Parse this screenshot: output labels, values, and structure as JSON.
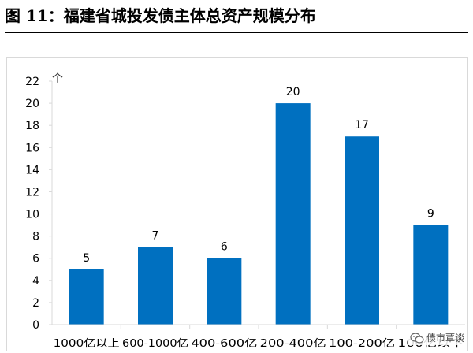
{
  "figure_title": "图 11：福建省城投发债主体总资产规模分布",
  "watermark": {
    "text": "债市覃谈",
    "icon": "wechat-icon"
  },
  "colors": {
    "bar": "#0070c0",
    "axis": "#d9d9d9",
    "text": "#000000"
  },
  "chart_data": {
    "type": "bar",
    "title": "",
    "xlabel": "",
    "ylabel": "个",
    "categories": [
      "1000亿以上",
      "600-1000亿",
      "400-600亿",
      "200-400亿",
      "100-200亿",
      "100亿以下"
    ],
    "values": [
      5,
      7,
      6,
      20,
      17,
      9
    ],
    "ylim": [
      0,
      22
    ],
    "yticks": [
      0,
      2,
      4,
      6,
      8,
      10,
      12,
      14,
      16,
      18,
      20,
      22
    ],
    "grid": false,
    "legend": "none",
    "data_labels": true
  }
}
